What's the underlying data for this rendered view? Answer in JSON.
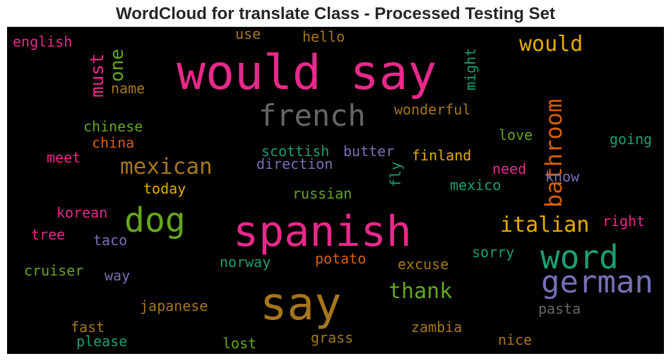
{
  "chart_data": {
    "type": "wordcloud",
    "title": "WordCloud for translate Class - Processed Testing Set",
    "background": "#000000",
    "colormap": [
      "#e7298a",
      "#a6761d",
      "#1b9e77",
      "#66a61e",
      "#d95f02",
      "#e6ab02",
      "#7570b3",
      "#666666"
    ],
    "words": [
      {
        "text": "would say",
        "color": "#e7298a",
        "vertical": false
      },
      {
        "text": "spanish",
        "color": "#e7298a",
        "vertical": false
      },
      {
        "text": "say",
        "color": "#a6761d",
        "vertical": false
      },
      {
        "text": "word",
        "color": "#1b9e77",
        "vertical": false
      },
      {
        "text": "german",
        "color": "#7570b3",
        "vertical": false
      },
      {
        "text": "dog",
        "color": "#66a61e",
        "vertical": false
      },
      {
        "text": "french",
        "color": "#666666",
        "vertical": false
      },
      {
        "text": "mexican",
        "color": "#a6761d",
        "vertical": false
      },
      {
        "text": "bathroom",
        "color": "#d95f02",
        "vertical": true
      },
      {
        "text": "italian",
        "color": "#e6ab02",
        "vertical": false
      },
      {
        "text": "thank",
        "color": "#66a61e",
        "vertical": false
      },
      {
        "text": "would",
        "color": "#e6ab02",
        "vertical": false
      },
      {
        "text": "must",
        "color": "#e7298a",
        "vertical": true
      },
      {
        "text": "one",
        "color": "#66a61e",
        "vertical": true
      },
      {
        "text": "name",
        "color": "#a6761d",
        "vertical": false
      },
      {
        "text": "english",
        "color": "#e7298a",
        "vertical": false
      },
      {
        "text": "use",
        "color": "#a6761d",
        "vertical": false
      },
      {
        "text": "hello",
        "color": "#a6761d",
        "vertical": false
      },
      {
        "text": "might",
        "color": "#1b9e77",
        "vertical": true
      },
      {
        "text": "wonderful",
        "color": "#a6761d",
        "vertical": false
      },
      {
        "text": "chinese",
        "color": "#66a61e",
        "vertical": false
      },
      {
        "text": "china",
        "color": "#d95f02",
        "vertical": false
      },
      {
        "text": "meet",
        "color": "#e7298a",
        "vertical": false
      },
      {
        "text": "love",
        "color": "#66a61e",
        "vertical": false
      },
      {
        "text": "going",
        "color": "#1b9e77",
        "vertical": false
      },
      {
        "text": "scottish",
        "color": "#1b9e77",
        "vertical": false
      },
      {
        "text": "butter",
        "color": "#7570b3",
        "vertical": false
      },
      {
        "text": "finland",
        "color": "#e6ab02",
        "vertical": false
      },
      {
        "text": "direction",
        "color": "#7570b3",
        "vertical": false
      },
      {
        "text": "fly",
        "color": "#1b9e77",
        "vertical": true
      },
      {
        "text": "need",
        "color": "#e7298a",
        "vertical": false
      },
      {
        "text": "know",
        "color": "#7570b3",
        "vertical": false
      },
      {
        "text": "today",
        "color": "#e6ab02",
        "vertical": false
      },
      {
        "text": "mexico",
        "color": "#1b9e77",
        "vertical": false
      },
      {
        "text": "russian",
        "color": "#66a61e",
        "vertical": false
      },
      {
        "text": "korean",
        "color": "#e7298a",
        "vertical": false
      },
      {
        "text": "right",
        "color": "#e7298a",
        "vertical": false
      },
      {
        "text": "tree",
        "color": "#e7298a",
        "vertical": false
      },
      {
        "text": "taco",
        "color": "#7570b3",
        "vertical": false
      },
      {
        "text": "sorry",
        "color": "#1b9e77",
        "vertical": false
      },
      {
        "text": "norway",
        "color": "#1b9e77",
        "vertical": false
      },
      {
        "text": "potato",
        "color": "#d95f02",
        "vertical": false
      },
      {
        "text": "excuse",
        "color": "#a6761d",
        "vertical": false
      },
      {
        "text": "cruiser",
        "color": "#66a61e",
        "vertical": false
      },
      {
        "text": "way",
        "color": "#7570b3",
        "vertical": false
      },
      {
        "text": "japanese",
        "color": "#a6761d",
        "vertical": false
      },
      {
        "text": "pasta",
        "color": "#666666",
        "vertical": false
      },
      {
        "text": "fast",
        "color": "#a6761d",
        "vertical": false
      },
      {
        "text": "zambia",
        "color": "#a6761d",
        "vertical": false
      },
      {
        "text": "grass",
        "color": "#a6761d",
        "vertical": false
      },
      {
        "text": "please",
        "color": "#1b9e77",
        "vertical": false
      },
      {
        "text": "lost",
        "color": "#66a61e",
        "vertical": false
      },
      {
        "text": "nice",
        "color": "#a6761d",
        "vertical": false
      }
    ]
  }
}
